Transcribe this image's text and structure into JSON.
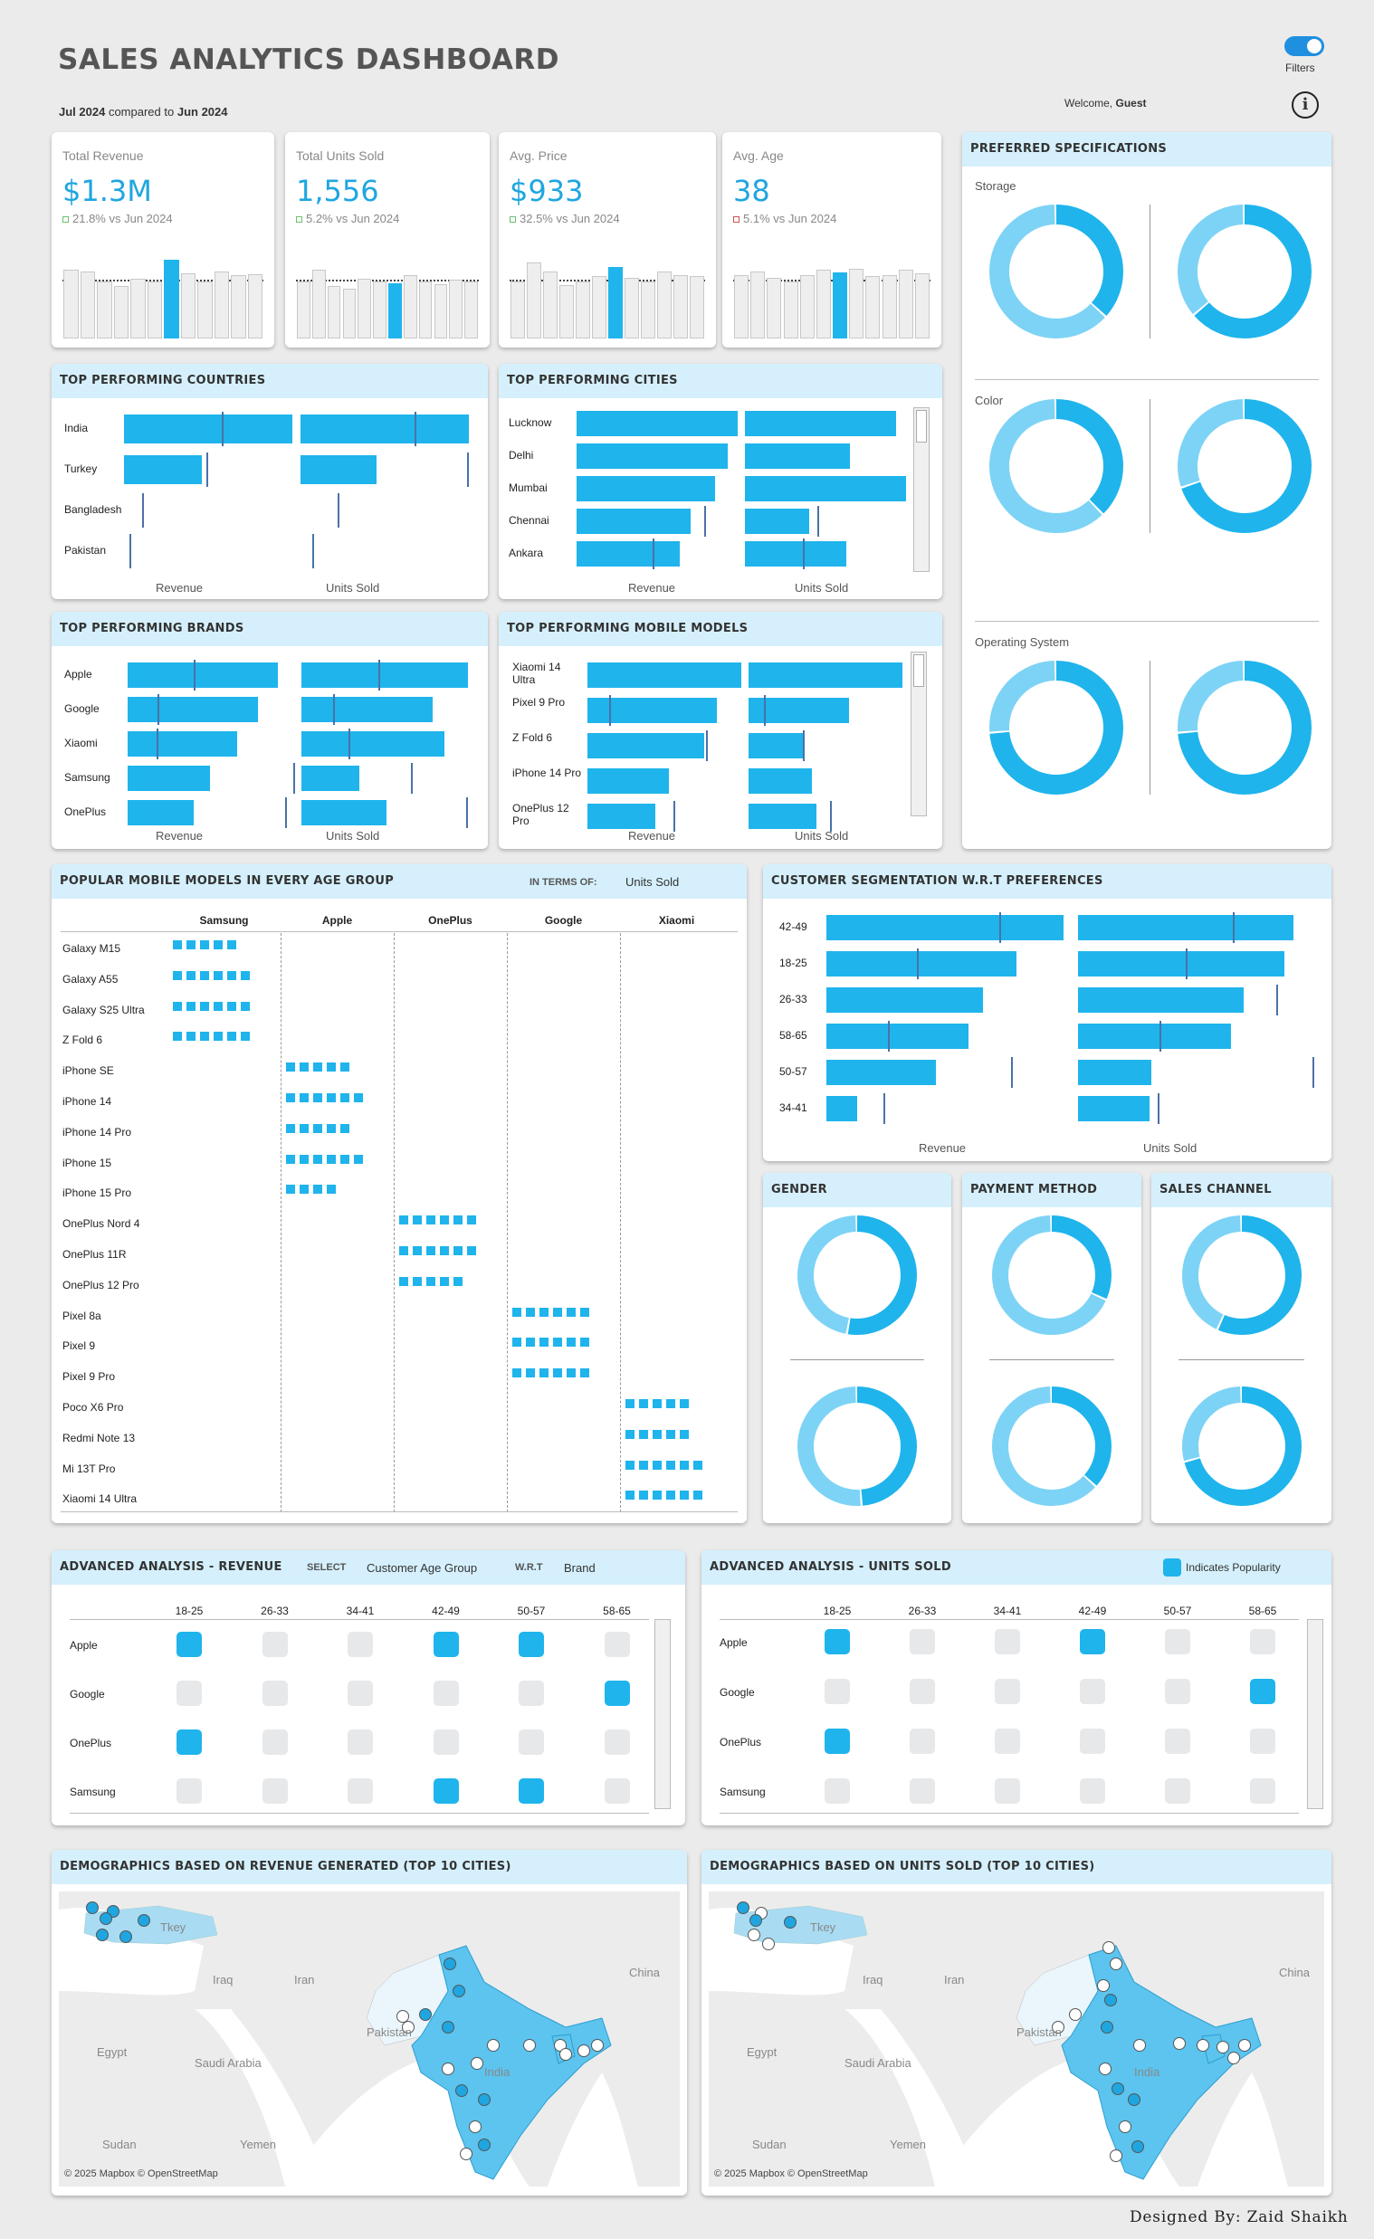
{
  "header": {
    "title": "SALES ANALYTICS DASHBOARD",
    "period": "Jul 2024",
    "compared_text": "compared to",
    "compare_period": "Jun 2024",
    "welcome": "Welcome,",
    "user": "Guest",
    "filters_label": "Filters",
    "info_icon": "info-icon",
    "toggle_on": true
  },
  "kpis": [
    {
      "label": "Total Revenue",
      "value": "$1.3M",
      "delta": "21.8% vs Jun 2024",
      "positive": true
    },
    {
      "label": "Total Units Sold",
      "value": "1,556",
      "delta": "5.2% vs Jun 2024",
      "positive": true
    },
    {
      "label": "Avg. Price",
      "value": "$933",
      "delta": "32.5% vs Jun 2024",
      "positive": true
    },
    {
      "label": "Avg. Age",
      "value": "38",
      "delta": "5.1% vs Jun 2024",
      "positive": false
    }
  ],
  "countries": {
    "title": "TOP PERFORMING COUNTRIES",
    "axis_left": "Revenue",
    "axis_right": "Units Sold",
    "rows": [
      {
        "label": "India",
        "revenue": 1.0,
        "rev_ref": 0.58,
        "units": 1.0,
        "units_ref": 0.68
      },
      {
        "label": "Turkey",
        "revenue": 0.46,
        "rev_ref": 0.49,
        "units": 0.45,
        "units_ref": 0.99
      },
      {
        "label": "Bangladesh",
        "revenue": 0.0,
        "rev_ref": 0.11,
        "units": 0.0,
        "units_ref": 0.22
      },
      {
        "label": "Pakistan",
        "revenue": 0.0,
        "rev_ref": 0.03,
        "units": 0.0,
        "units_ref": 0.07
      }
    ]
  },
  "cities": {
    "title": "TOP PERFORMING CITIES",
    "axis_left": "Revenue",
    "axis_right": "Units Sold",
    "rows": [
      {
        "label": "Lucknow",
        "revenue": 1.0,
        "rev_ref": null,
        "units": 0.94,
        "units_ref": null
      },
      {
        "label": "Delhi",
        "revenue": 0.94,
        "rev_ref": null,
        "units": 0.65,
        "units_ref": null
      },
      {
        "label": "Mumbai",
        "revenue": 0.86,
        "rev_ref": null,
        "units": 1.0,
        "units_ref": null
      },
      {
        "label": "Chennai",
        "revenue": 0.71,
        "rev_ref": 0.79,
        "units": 0.4,
        "units_ref": 0.45
      },
      {
        "label": "Ankara",
        "revenue": 0.64,
        "rev_ref": 0.47,
        "units": 0.63,
        "units_ref": 0.36
      }
    ]
  },
  "brands": {
    "title": "TOP PERFORMING BRANDS",
    "axis_left": "Revenue",
    "axis_right": "Units Sold",
    "rows": [
      {
        "label": "Apple",
        "revenue": 1.0,
        "rev_ref": 0.44,
        "units": 1.0,
        "units_ref": 0.46
      },
      {
        "label": "Google",
        "revenue": 0.87,
        "rev_ref": 0.2,
        "units": 0.79,
        "units_ref": 0.19
      },
      {
        "label": "Xiaomi",
        "revenue": 0.73,
        "rev_ref": 0.19,
        "units": 0.86,
        "units_ref": 0.28
      },
      {
        "label": "Samsung",
        "revenue": 0.55,
        "rev_ref": 1.1,
        "units": 0.35,
        "units_ref": 0.66
      },
      {
        "label": "OnePlus",
        "revenue": 0.44,
        "rev_ref": 1.05,
        "units": 0.51,
        "units_ref": 0.99
      }
    ]
  },
  "models": {
    "title": "TOP PERFORMING MOBILE MODELS",
    "axis_left": "Revenue",
    "axis_right": "Units Sold",
    "rows": [
      {
        "label1": "Xiaomi 14",
        "label2": "Ultra",
        "revenue": 1.0,
        "rev_ref": null,
        "units": 1.0,
        "units_ref": null
      },
      {
        "label1": "Pixel 9 Pro",
        "label2": "",
        "revenue": 0.84,
        "rev_ref": 0.14,
        "units": 0.65,
        "units_ref": 0.1
      },
      {
        "label1": "Z Fold 6",
        "label2": "",
        "revenue": 0.76,
        "rev_ref": 0.77,
        "units": 0.35,
        "units_ref": 0.35
      },
      {
        "label1": "iPhone 14 Pro",
        "label2": "",
        "revenue": 0.53,
        "rev_ref": null,
        "units": 0.41,
        "units_ref": null
      },
      {
        "label1": "OnePlus 12",
        "label2": "Pro",
        "revenue": 0.44,
        "rev_ref": 0.56,
        "units": 0.44,
        "units_ref": 0.53
      }
    ]
  },
  "specs": {
    "title": "PREFERRED SPECIFICATIONS",
    "groups": [
      {
        "label": "Storage",
        "donuts": [
          [
            0.37,
            0.63
          ],
          [
            0.64,
            0.36
          ]
        ]
      },
      {
        "label": "Color",
        "donuts": [
          [
            0.38,
            0.62
          ],
          [
            0.7,
            0.3
          ]
        ]
      },
      {
        "label": "Operating System",
        "donuts": [
          [
            0.74,
            0.26
          ],
          [
            0.74,
            0.26
          ]
        ]
      }
    ]
  },
  "age_models": {
    "title": "POPULAR MOBILE MODELS IN EVERY AGE GROUP",
    "in_terms_label": "IN TERMS OF:",
    "in_terms_value": "Units Sold",
    "brands": [
      "Samsung",
      "Apple",
      "OnePlus",
      "Google",
      "Xiaomi"
    ],
    "rows": [
      {
        "model": "Galaxy M15",
        "brand": 0,
        "count": 5
      },
      {
        "model": "Galaxy A55",
        "brand": 0,
        "count": 6
      },
      {
        "model": "Galaxy S25 Ultra",
        "brand": 0,
        "count": 6
      },
      {
        "model": "Z Fold 6",
        "brand": 0,
        "count": 6
      },
      {
        "model": "iPhone SE",
        "brand": 1,
        "count": 5
      },
      {
        "model": "iPhone 14",
        "brand": 1,
        "count": 6
      },
      {
        "model": "iPhone 14 Pro",
        "brand": 1,
        "count": 5
      },
      {
        "model": "iPhone 15",
        "brand": 1,
        "count": 6
      },
      {
        "model": "iPhone 15 Pro",
        "brand": 1,
        "count": 4
      },
      {
        "model": "OnePlus Nord 4",
        "brand": 2,
        "count": 6
      },
      {
        "model": "OnePlus 11R",
        "brand": 2,
        "count": 6
      },
      {
        "model": "OnePlus 12 Pro",
        "brand": 2,
        "count": 5
      },
      {
        "model": "Pixel 8a",
        "brand": 3,
        "count": 6
      },
      {
        "model": "Pixel 9",
        "brand": 3,
        "count": 6
      },
      {
        "model": "Pixel 9 Pro",
        "brand": 3,
        "count": 6
      },
      {
        "model": "Poco X6 Pro",
        "brand": 4,
        "count": 5
      },
      {
        "model": "Redmi Note 13",
        "brand": 4,
        "count": 5
      },
      {
        "model": "Mi 13T Pro",
        "brand": 4,
        "count": 6
      },
      {
        "model": "Xiaomi 14 Ultra",
        "brand": 4,
        "count": 6
      }
    ]
  },
  "segmentation": {
    "title": "CUSTOMER SEGMENTATION W.R.T PREFERENCES",
    "axis_left": "Revenue",
    "axis_right": "Units Sold",
    "rows": [
      {
        "label": "42-49",
        "revenue": 1.0,
        "rev_ref": 0.73,
        "units": 1.0,
        "units_ref": 0.72
      },
      {
        "label": "18-25",
        "revenue": 0.8,
        "rev_ref": 0.38,
        "units": 0.96,
        "units_ref": 0.5
      },
      {
        "label": "26-33",
        "revenue": 0.66,
        "rev_ref": null,
        "units": 0.77,
        "units_ref": 0.92
      },
      {
        "label": "58-65",
        "revenue": 0.6,
        "rev_ref": 0.26,
        "units": 0.71,
        "units_ref": 0.38
      },
      {
        "label": "50-57",
        "revenue": 0.46,
        "rev_ref": 0.78,
        "units": 0.34,
        "units_ref": 1.09
      },
      {
        "label": "34-41",
        "revenue": 0.13,
        "rev_ref": 0.24,
        "units": 0.33,
        "units_ref": 0.37
      }
    ]
  },
  "small_donuts": [
    {
      "title": "GENDER",
      "donuts": [
        [
          0.53,
          0.47
        ],
        [
          0.49,
          0.51
        ]
      ]
    },
    {
      "title": "PAYMENT METHOD",
      "donuts": [
        [
          0.32,
          0.68
        ],
        [
          0.37,
          0.63
        ]
      ]
    },
    {
      "title": "SALES CHANNEL",
      "donuts": [
        [
          0.57,
          0.43
        ],
        [
          0.71,
          0.29
        ]
      ]
    }
  ],
  "adv_revenue": {
    "title": "ADVANCED ANALYSIS - REVENUE",
    "select_label": "SELECT",
    "select_value": "Customer Age Group",
    "wrt_label": "W.R.T",
    "wrt_value": "Brand",
    "cols": [
      "18-25",
      "26-33",
      "34-41",
      "42-49",
      "50-57",
      "58-65"
    ],
    "rows": [
      {
        "label": "Apple",
        "cells": [
          1,
          0,
          0,
          1,
          1,
          0
        ]
      },
      {
        "label": "Google",
        "cells": [
          0,
          0,
          0,
          0,
          0,
          1
        ]
      },
      {
        "label": "OnePlus",
        "cells": [
          1,
          0,
          0,
          0,
          0,
          0
        ]
      },
      {
        "label": "Samsung",
        "cells": [
          0,
          0,
          0,
          1,
          1,
          0
        ]
      }
    ]
  },
  "adv_units": {
    "title": "ADVANCED ANALYSIS - UNITS SOLD",
    "legend": "Indicates Popularity",
    "cols": [
      "18-25",
      "26-33",
      "34-41",
      "42-49",
      "50-57",
      "58-65"
    ],
    "rows": [
      {
        "label": "Apple",
        "cells": [
          1,
          0,
          0,
          1,
          0,
          0
        ]
      },
      {
        "label": "Google",
        "cells": [
          0,
          0,
          0,
          0,
          0,
          1
        ]
      },
      {
        "label": "OnePlus",
        "cells": [
          1,
          0,
          0,
          0,
          0,
          0
        ]
      },
      {
        "label": "Samsung",
        "cells": [
          0,
          0,
          0,
          0,
          0,
          0
        ]
      }
    ]
  },
  "map_revenue": {
    "title": "DEMOGRAPHICS BASED ON REVENUE GENERATED (TOP 10 CITIES)",
    "credit": "© 2025 Mapbox © OpenStreetMap"
  },
  "map_units": {
    "title": "DEMOGRAPHICS BASED ON UNITS SOLD (TOP 10 CITIES)",
    "credit": "© 2025 Mapbox © OpenStreetMap"
  },
  "map_labels": {
    "turkey": "Tkey",
    "iraq": "Iraq",
    "iran": "Iran",
    "china": "China",
    "pakistan": "Pakistan",
    "egypt": "Egypt",
    "saudi": "Saudi Arabia",
    "india": "India",
    "sudan": "Sudan",
    "yemen": "Yemen"
  },
  "footer": {
    "designed_by": "Designed By: Zaid Shaikh"
  },
  "colors": {
    "accent": "#1fb4ec",
    "light": "#7dd3f5",
    "pale": "#d9f1fc",
    "header_bg": "#d5f0fc"
  }
}
